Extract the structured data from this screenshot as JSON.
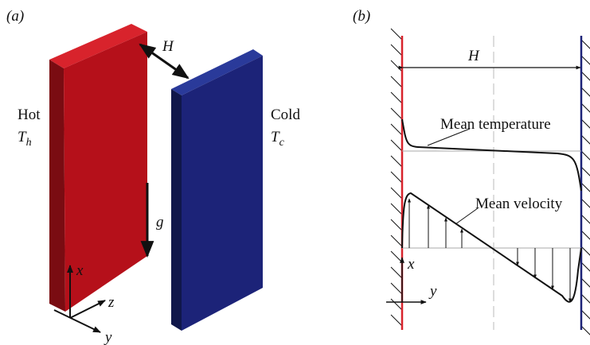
{
  "panel_a": {
    "label": "(a)",
    "gap_label": "H",
    "hot": {
      "label": "Hot",
      "symbol": "T",
      "subscript": "h"
    },
    "cold": {
      "label": "Cold",
      "symbol": "T",
      "subscript": "c"
    },
    "gravity_label": "g",
    "axes": {
      "x": "x",
      "z": "z",
      "y": "y"
    }
  },
  "panel_b": {
    "label": "(b)",
    "gap_label": "H",
    "temperature_label": "Mean temperature",
    "velocity_label": "Mean velocity",
    "axes": {
      "x": "x",
      "y": "y"
    }
  }
}
